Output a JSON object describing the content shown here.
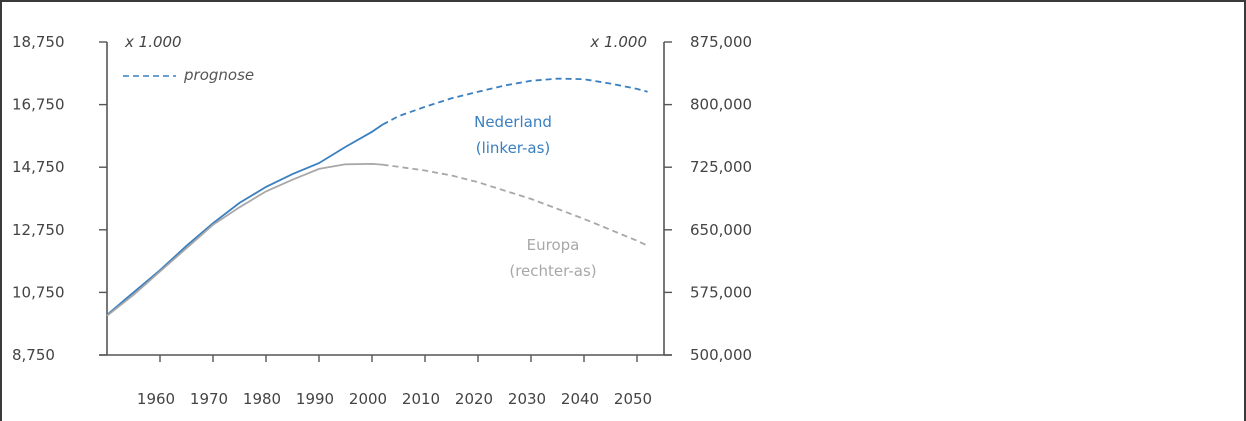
{
  "chart_data": {
    "type": "line",
    "left_axis": {
      "unit": "x 1.000",
      "ylim": [
        8750,
        18750
      ],
      "ticks": [
        8750,
        10750,
        12750,
        14750,
        16750,
        18750
      ],
      "tick_labels": [
        "8,750",
        "10,750",
        "12,750",
        "14,750",
        "16,750",
        "18,750"
      ]
    },
    "right_axis": {
      "unit": "x 1.000",
      "ylim": [
        500000,
        875000
      ],
      "ticks": [
        500000,
        575000,
        650000,
        725000,
        800000,
        875000
      ],
      "tick_labels": [
        "500,000",
        "575,000",
        "650,000",
        "725,000",
        "800,000",
        "875,000"
      ]
    },
    "x_axis": {
      "xlim": [
        1950,
        2055
      ],
      "ticks": [
        1960,
        1970,
        1980,
        1990,
        2000,
        2010,
        2020,
        2030,
        2040,
        2050
      ],
      "tick_labels": [
        "1960",
        "1970",
        "1980",
        "1990",
        "2000",
        "2010",
        "2020",
        "2030",
        "2040",
        "2050"
      ]
    },
    "legend": {
      "label": "prognose",
      "style": "dashed",
      "placement": "top-left"
    },
    "series": [
      {
        "name": "Nederland",
        "sublabel": "(linker-as)",
        "axis": "left",
        "color": "#3a7fc0",
        "forecast_from": 2002,
        "points": [
          [
            1950,
            10030
          ],
          [
            1955,
            10750
          ],
          [
            1960,
            11460
          ],
          [
            1965,
            12240
          ],
          [
            1970,
            12960
          ],
          [
            1975,
            13610
          ],
          [
            1980,
            14120
          ],
          [
            1985,
            14530
          ],
          [
            1990,
            14880
          ],
          [
            1995,
            15400
          ],
          [
            2000,
            15880
          ],
          [
            2002,
            16110
          ],
          [
            2005,
            16380
          ],
          [
            2010,
            16680
          ],
          [
            2015,
            16950
          ],
          [
            2020,
            17160
          ],
          [
            2025,
            17360
          ],
          [
            2030,
            17510
          ],
          [
            2035,
            17580
          ],
          [
            2040,
            17560
          ],
          [
            2045,
            17420
          ],
          [
            2050,
            17250
          ],
          [
            2052,
            17160
          ]
        ]
      },
      {
        "name": "Europa",
        "sublabel": "(rechter-as)",
        "axis": "right",
        "color": "#a8a8a8",
        "forecast_from": 2002,
        "points": [
          [
            1950,
            547000
          ],
          [
            1955,
            572000
          ],
          [
            1960,
            600000
          ],
          [
            1965,
            628000
          ],
          [
            1970,
            656000
          ],
          [
            1975,
            677000
          ],
          [
            1980,
            696000
          ],
          [
            1985,
            710000
          ],
          [
            1990,
            723000
          ],
          [
            1995,
            728500
          ],
          [
            2000,
            729000
          ],
          [
            2002,
            728000
          ],
          [
            2005,
            725500
          ],
          [
            2010,
            721000
          ],
          [
            2015,
            715000
          ],
          [
            2020,
            707000
          ],
          [
            2025,
            697000
          ],
          [
            2030,
            687000
          ],
          [
            2035,
            675000
          ],
          [
            2040,
            663000
          ],
          [
            2045,
            650000
          ],
          [
            2050,
            637000
          ],
          [
            2052,
            631000
          ]
        ]
      }
    ]
  }
}
